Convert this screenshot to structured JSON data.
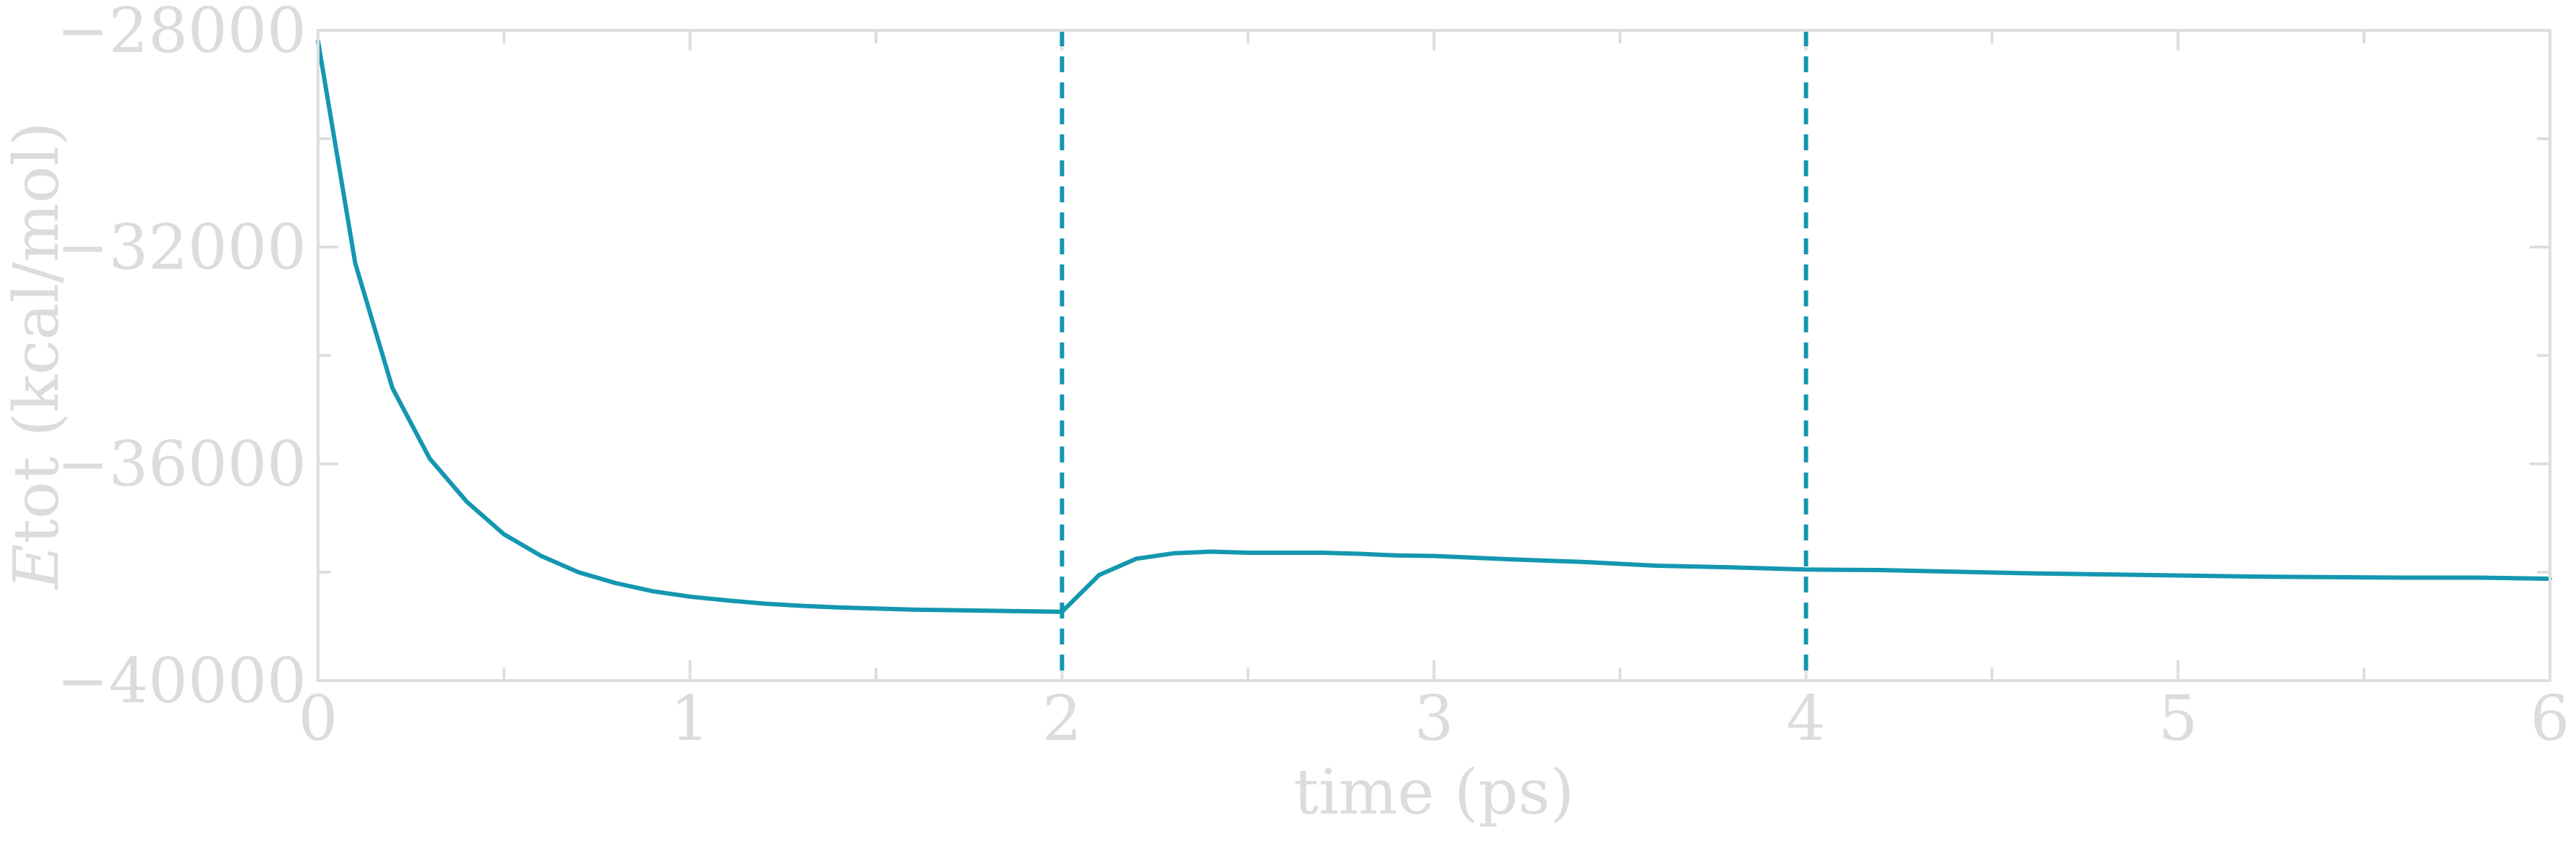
{
  "chart_data": {
    "type": "line",
    "xlabel": "time (ps)",
    "ylabel": "Etot (kcal/mol)",
    "ylabel_symbol": "E",
    "ylabel_rest": "tot (kcal/mol)",
    "xlim": [
      0,
      6
    ],
    "ylim": [
      -40000,
      -28000
    ],
    "x_ticks": [
      0,
      1,
      2,
      3,
      4,
      5,
      6
    ],
    "x_tick_labels": [
      "0",
      "1",
      "2",
      "3",
      "4",
      "5",
      "6"
    ],
    "y_ticks": [
      -28000,
      -32000,
      -36000,
      -40000
    ],
    "y_tick_labels": [
      "−28000",
      "−32000",
      "−36000",
      "−40000"
    ],
    "grid": false,
    "colors": {
      "series": "#1497b0",
      "axis": "#dedede",
      "text": "#dcdcdc"
    },
    "vlines": [
      2,
      4
    ],
    "series": [
      {
        "x": [
          0,
          0.1,
          0.2,
          0.3,
          0.4,
          0.5,
          0.6,
          0.7,
          0.8,
          0.9,
          1.0,
          1.1,
          1.2,
          1.3,
          1.4,
          1.5,
          1.6,
          1.7,
          1.8,
          1.9,
          2.0,
          2.1,
          2.2,
          2.3,
          2.4,
          2.5,
          2.6,
          2.7,
          2.8,
          2.9,
          3.0,
          3.2,
          3.4,
          3.6,
          3.8,
          4.0,
          4.2,
          4.4,
          4.6,
          4.8,
          5.0,
          5.2,
          5.4,
          5.6,
          5.8,
          6.0
        ],
        "y": [
          -28200,
          -32300,
          -34600,
          -35900,
          -36700,
          -37300,
          -37700,
          -38000,
          -38200,
          -38350,
          -38450,
          -38520,
          -38580,
          -38620,
          -38650,
          -38670,
          -38690,
          -38700,
          -38710,
          -38720,
          -38730,
          -38050,
          -37750,
          -37650,
          -37620,
          -37640,
          -37640,
          -37640,
          -37660,
          -37690,
          -37700,
          -37760,
          -37810,
          -37880,
          -37910,
          -37950,
          -37960,
          -37990,
          -38020,
          -38040,
          -38060,
          -38080,
          -38090,
          -38100,
          -38100,
          -38120
        ]
      }
    ]
  }
}
